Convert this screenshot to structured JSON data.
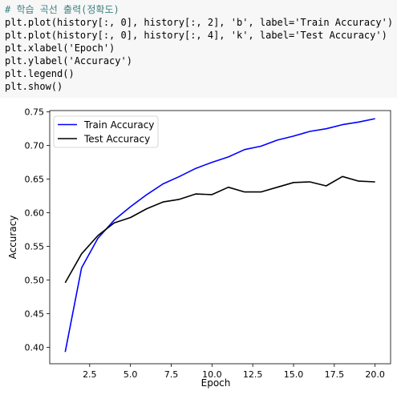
{
  "code_cell": {
    "lines": [
      "# 학습 곡선 출력(정확도)",
      "plt.plot(history[:, 0], history[:, 2], 'b', label='Train Accuracy')",
      "plt.plot(history[:, 0], history[:, 4], 'k', label='Test Accuracy')",
      "plt.xlabel('Epoch')",
      "plt.ylabel('Accuracy')",
      "plt.legend()",
      "plt.show()"
    ]
  },
  "chart_data": {
    "type": "line",
    "xlabel": "Epoch",
    "ylabel": "Accuracy",
    "xlim": [
      0.05,
      20.95
    ],
    "ylim": [
      0.3755,
      0.752
    ],
    "xticks": [
      2.5,
      5.0,
      7.5,
      10.0,
      12.5,
      15.0,
      17.5,
      20.0
    ],
    "xtick_labels": [
      "2.5",
      "5.0",
      "7.5",
      "10.0",
      "12.5",
      "15.0",
      "17.5",
      "20.0"
    ],
    "yticks": [
      0.4,
      0.45,
      0.5,
      0.55,
      0.6,
      0.65,
      0.7,
      0.75
    ],
    "ytick_labels": [
      "0.40",
      "0.45",
      "0.50",
      "0.55",
      "0.60",
      "0.65",
      "0.70",
      "0.75"
    ],
    "grid": false,
    "legend_position": "top-left",
    "x": [
      1,
      2,
      3,
      4,
      5,
      6,
      7,
      8,
      9,
      10,
      11,
      12,
      13,
      14,
      15,
      16,
      17,
      18,
      19,
      20
    ],
    "series": [
      {
        "name": "Train Accuracy",
        "color": "#0000ff",
        "values": [
          0.393,
          0.518,
          0.562,
          0.589,
          0.609,
          0.627,
          0.643,
          0.654,
          0.666,
          0.675,
          0.683,
          0.694,
          0.699,
          0.708,
          0.714,
          0.721,
          0.725,
          0.731,
          0.735,
          0.74
        ]
      },
      {
        "name": "Test Accuracy",
        "color": "#000000",
        "values": [
          0.496,
          0.539,
          0.566,
          0.585,
          0.593,
          0.606,
          0.616,
          0.62,
          0.628,
          0.627,
          0.638,
          0.631,
          0.631,
          0.638,
          0.645,
          0.646,
          0.64,
          0.654,
          0.647,
          0.646
        ]
      }
    ]
  }
}
